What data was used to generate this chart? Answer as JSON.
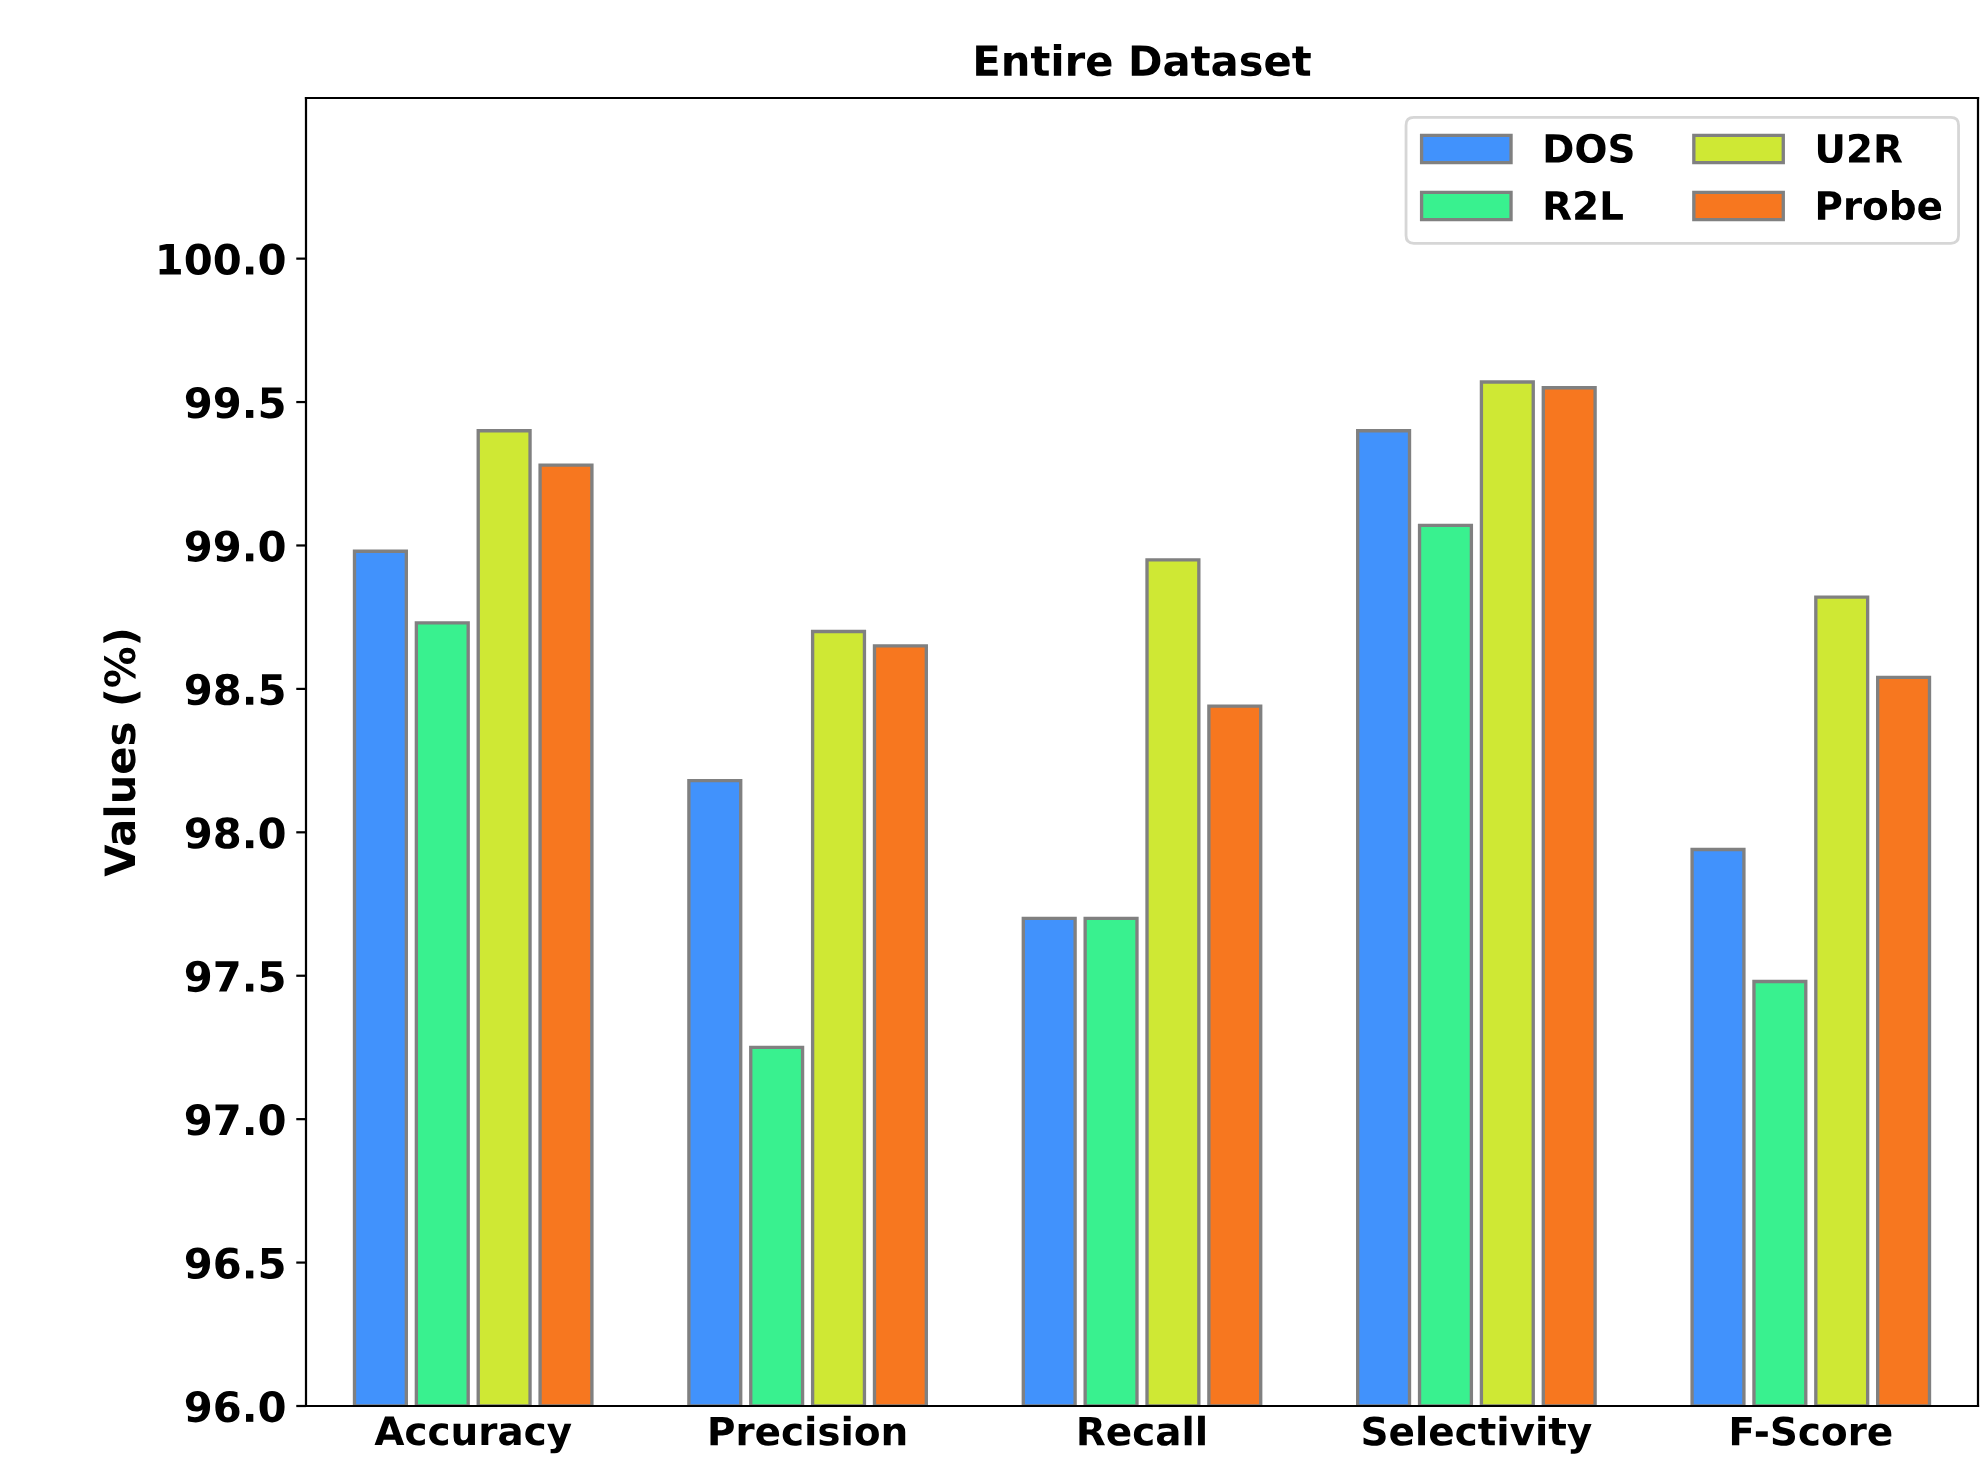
{
  "chart_data": {
    "type": "bar",
    "title": "Entire Dataset",
    "ylabel": "Values (%)",
    "categories": [
      "Accuracy",
      "Precision",
      "Recall",
      "Selectivity",
      "F-Score"
    ],
    "series": [
      {
        "name": "DOS",
        "color": "#4192fc",
        "values": [
          98.98,
          98.18,
          97.7,
          99.4,
          97.94
        ]
      },
      {
        "name": "R2L",
        "color": "#39f18f",
        "values": [
          98.73,
          97.25,
          97.7,
          99.07,
          97.48
        ]
      },
      {
        "name": "U2R",
        "color": "#cfe834",
        "values": [
          99.4,
          98.7,
          98.95,
          99.57,
          98.82
        ]
      },
      {
        "name": "Probe",
        "color": "#f7771f",
        "values": [
          99.28,
          98.65,
          98.44,
          99.55,
          98.54
        ]
      }
    ],
    "ylim": [
      96.0,
      100.56
    ],
    "yticks": [
      {
        "value": 96,
        "label": "96.0"
      },
      {
        "value": 96.5,
        "label": "96.5"
      },
      {
        "value": 97,
        "label": "97.0"
      },
      {
        "value": 97.5,
        "label": "97.5"
      },
      {
        "value": 98,
        "label": "98.0"
      },
      {
        "value": 98.5,
        "label": "98.5"
      },
      {
        "value": 99,
        "label": "99.0"
      },
      {
        "value": 99.5,
        "label": "99.5"
      },
      {
        "value": 100,
        "label": "100.0"
      }
    ],
    "grid": false,
    "legend": "top right"
  }
}
